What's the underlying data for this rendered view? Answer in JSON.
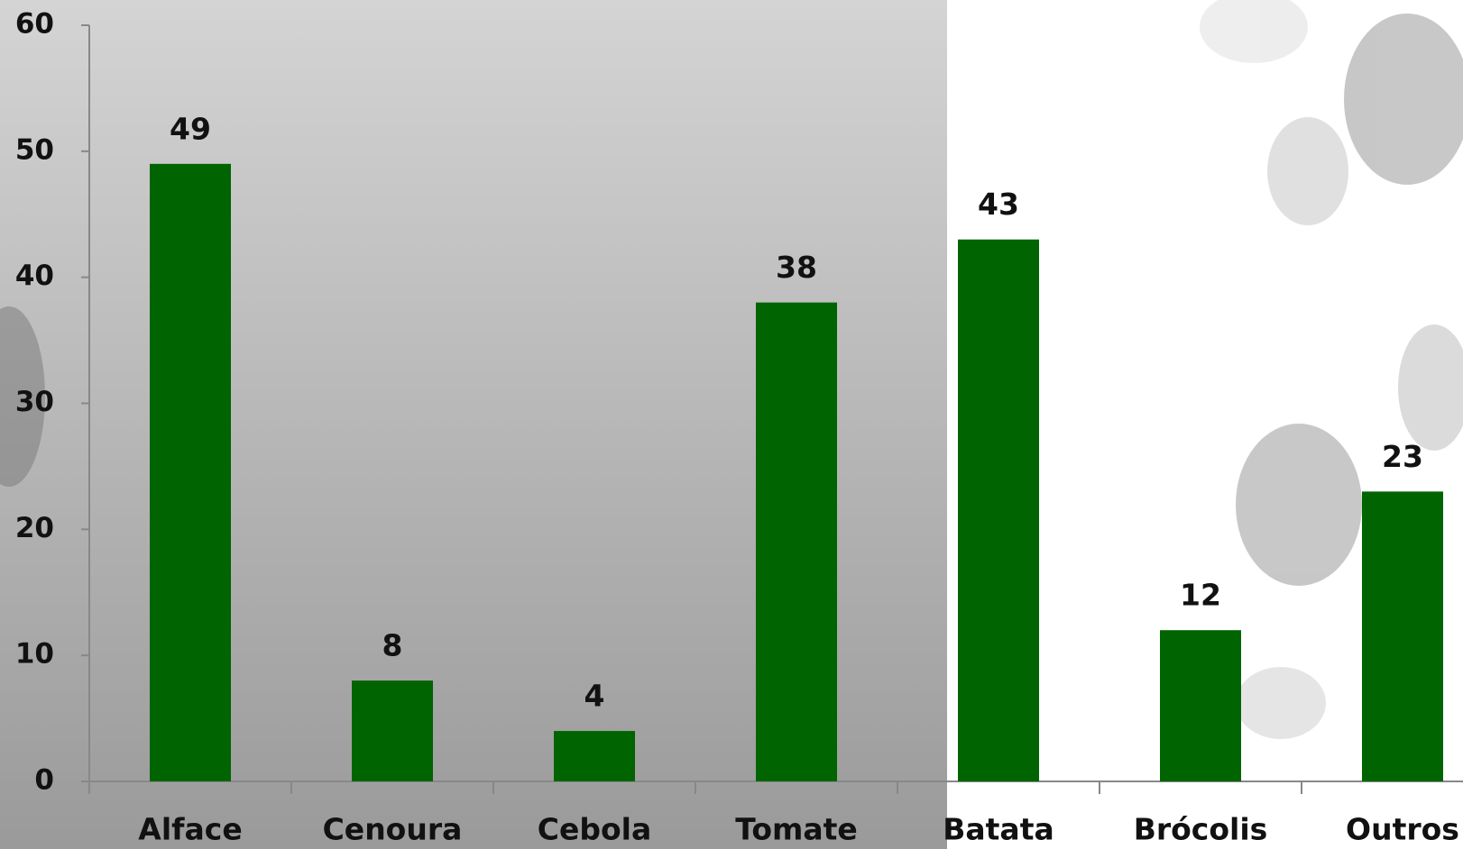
{
  "chart_data": {
    "type": "bar",
    "categories": [
      "Alface",
      "Cenoura",
      "Cebola",
      "Tomate",
      "Batata",
      "Brócolis",
      "Outros"
    ],
    "values": [
      49,
      8,
      4,
      38,
      43,
      12,
      23
    ],
    "color": "#006400",
    "ylim": [
      0,
      60
    ],
    "yticks": [
      0,
      10,
      20,
      30,
      40,
      50,
      60
    ]
  }
}
